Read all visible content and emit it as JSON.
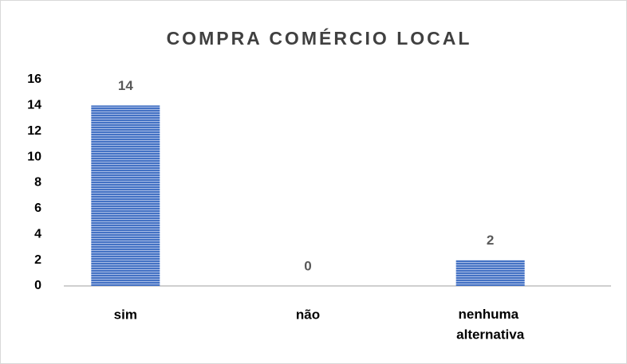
{
  "chart_data": {
    "type": "bar",
    "title": "COMPRA COMÉRCIO LOCAL",
    "categories": [
      "sim",
      "não",
      "nenhuma alternativa"
    ],
    "values": [
      14,
      0,
      2
    ],
    "color": "#4472c4",
    "ylim": [
      0,
      16
    ],
    "yticks": [
      0,
      2,
      4,
      6,
      8,
      10,
      12,
      14,
      16
    ],
    "grid": false
  }
}
